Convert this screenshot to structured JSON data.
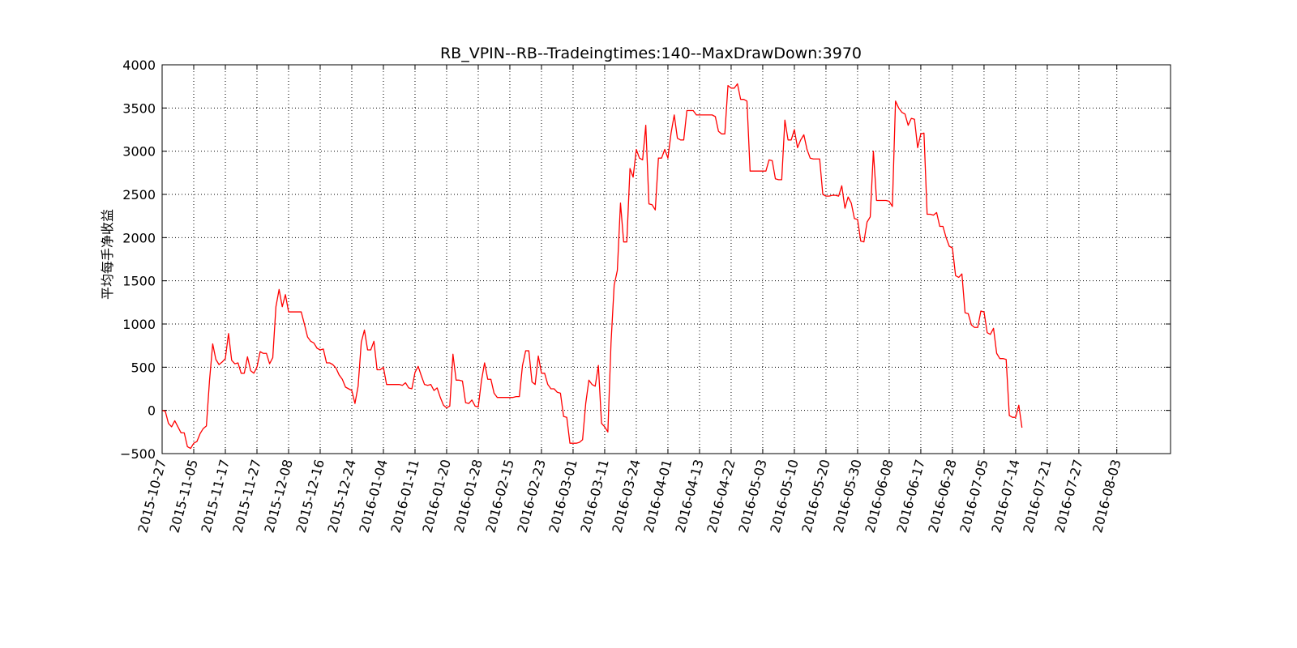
{
  "chart_data": {
    "type": "line",
    "title": "RB_VPIN--RB--Tradeingtimes:140--MaxDrawDown:3970",
    "xlabel": "",
    "ylabel": "平均每手净收益",
    "ylim": [
      -500,
      4000
    ],
    "y_ticks": [
      -500,
      0,
      500,
      1000,
      1500,
      2000,
      2500,
      3000,
      3500,
      4000
    ],
    "y_tick_labels": [
      "−500",
      "0",
      "500",
      "1000",
      "1500",
      "2000",
      "2500",
      "3000",
      "3500",
      "4000"
    ],
    "x_tick_labels": [
      "2015-10-27",
      "2015-11-05",
      "2015-11-17",
      "2015-11-27",
      "2015-12-08",
      "2015-12-16",
      "2015-12-24",
      "2016-01-04",
      "2016-01-11",
      "2016-01-20",
      "2016-01-28",
      "2016-02-15",
      "2016-02-23",
      "2016-03-01",
      "2016-03-11",
      "2016-03-24",
      "2016-04-01",
      "2016-04-13",
      "2016-04-22",
      "2016-05-03",
      "2016-05-10",
      "2016-05-20",
      "2016-05-30",
      "2016-06-08",
      "2016-06-17",
      "2016-06-28",
      "2016-07-05",
      "2016-07-14",
      "2016-07-21",
      "2016-07-27",
      "2016-08-03"
    ],
    "x_tick_index": [
      0,
      10,
      20,
      30,
      40,
      50,
      60,
      70,
      80,
      90,
      100,
      110,
      120,
      130,
      140,
      150,
      160,
      170,
      180,
      190,
      200,
      210,
      220,
      230,
      240,
      250,
      260,
      270,
      280,
      290,
      302
    ],
    "x_range": [
      0,
      319
    ],
    "grid": true,
    "legend": "none",
    "series": [
      {
        "color": "#ff0000",
        "values": [
          0,
          -10,
          -150,
          -190,
          -120,
          -190,
          -260,
          -260,
          -420,
          -440,
          -380,
          -360,
          -270,
          -210,
          -180,
          350,
          770,
          590,
          530,
          560,
          600,
          890,
          580,
          540,
          550,
          430,
          430,
          620,
          460,
          430,
          500,
          680,
          660,
          660,
          540,
          610,
          1200,
          1400,
          1200,
          1340,
          1140,
          1140,
          1140,
          1140,
          1140,
          1000,
          850,
          800,
          780,
          720,
          700,
          710,
          550,
          550,
          530,
          490,
          410,
          360,
          270,
          250,
          230,
          80,
          280,
          790,
          930,
          700,
          700,
          800,
          470,
          470,
          500,
          300,
          300,
          300,
          300,
          300,
          290,
          320,
          260,
          250,
          440,
          510,
          400,
          300,
          290,
          300,
          230,
          260,
          150,
          60,
          30,
          50,
          650,
          350,
          350,
          340,
          90,
          80,
          120,
          50,
          40,
          340,
          550,
          360,
          360,
          200,
          150,
          150,
          150,
          150,
          150,
          150,
          160,
          160,
          520,
          690,
          690,
          330,
          300,
          630,
          430,
          430,
          300,
          250,
          250,
          210,
          200,
          -70,
          -80,
          -380,
          -380,
          -380,
          -370,
          -340,
          80,
          350,
          300,
          280,
          520,
          -150,
          -190,
          -250,
          780,
          1450,
          1620,
          2400,
          1950,
          1950,
          2800,
          2700,
          3020,
          2920,
          2900,
          3300,
          2390,
          2380,
          2320,
          2920,
          2920,
          3020,
          2920,
          3210,
          3420,
          3150,
          3130,
          3130,
          3470,
          3470,
          3470,
          3420,
          3420,
          3420,
          3420,
          3420,
          3420,
          3400,
          3230,
          3200,
          3200,
          3760,
          3730,
          3730,
          3780,
          3600,
          3600,
          3580,
          2770,
          2770,
          2770,
          2770,
          2770,
          2770,
          2900,
          2890,
          2680,
          2670,
          2670,
          3360,
          3130,
          3130,
          3250,
          3040,
          3130,
          3190,
          3020,
          2920,
          2910,
          2910,
          2910,
          2500,
          2480,
          2480,
          2490,
          2490,
          2480,
          2600,
          2340,
          2470,
          2400,
          2220,
          2210,
          1960,
          1950,
          2180,
          2240,
          3000,
          2430,
          2430,
          2430,
          2430,
          2420,
          2360,
          3580,
          3500,
          3450,
          3430,
          3300,
          3380,
          3370,
          3040,
          3200,
          3210,
          2270,
          2270,
          2260,
          2290,
          2130,
          2130,
          2000,
          1900,
          1880,
          1560,
          1540,
          1580,
          1130,
          1120,
          990,
          960,
          960,
          1150,
          1140,
          900,
          880,
          950,
          660,
          600,
          600,
          590,
          -60,
          -80,
          -80,
          60,
          -200
        ]
      }
    ]
  }
}
